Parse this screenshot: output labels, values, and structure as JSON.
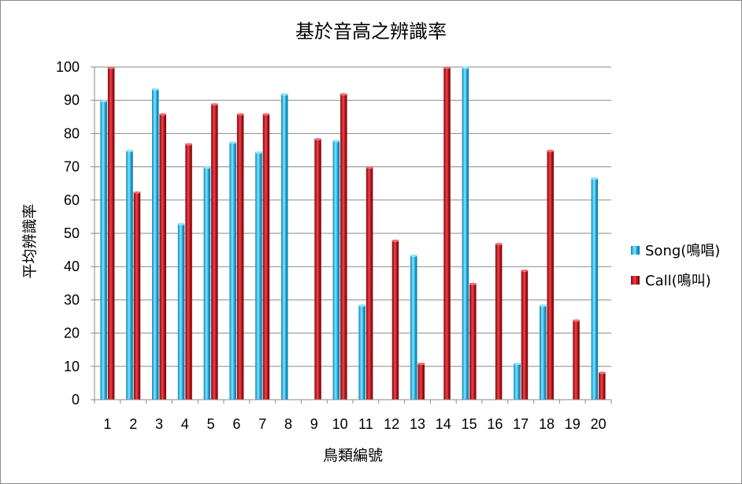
{
  "chart_data": {
    "type": "bar",
    "title": "基於音高之辨識率",
    "xlabel": "鳥類編號",
    "ylabel": "平均辨識率",
    "ylim": [
      0,
      100
    ],
    "yticks": [
      0,
      10,
      20,
      30,
      40,
      50,
      60,
      70,
      80,
      90,
      100
    ],
    "categories": [
      "1",
      "2",
      "3",
      "4",
      "5",
      "6",
      "7",
      "8",
      "9",
      "10",
      "11",
      "12",
      "13",
      "14",
      "15",
      "16",
      "17",
      "18",
      "19",
      "20"
    ],
    "series": [
      {
        "name": "Song(鳴唱)",
        "color": "#1fa9dc",
        "values": [
          90,
          75,
          93.5,
          53,
          70,
          77.5,
          74.5,
          92,
          0,
          78,
          28.5,
          0,
          43.5,
          0,
          100,
          0,
          11,
          28.5,
          0,
          66.7
        ]
      },
      {
        "name": "Call(鳴叫)",
        "color": "#c0141b",
        "values": [
          100,
          62.5,
          86,
          77,
          89,
          86,
          86,
          0,
          78.5,
          92,
          70,
          48,
          11,
          100,
          35,
          47,
          39,
          75,
          24,
          8.3
        ]
      }
    ],
    "grid": true,
    "legend_position": "right"
  }
}
